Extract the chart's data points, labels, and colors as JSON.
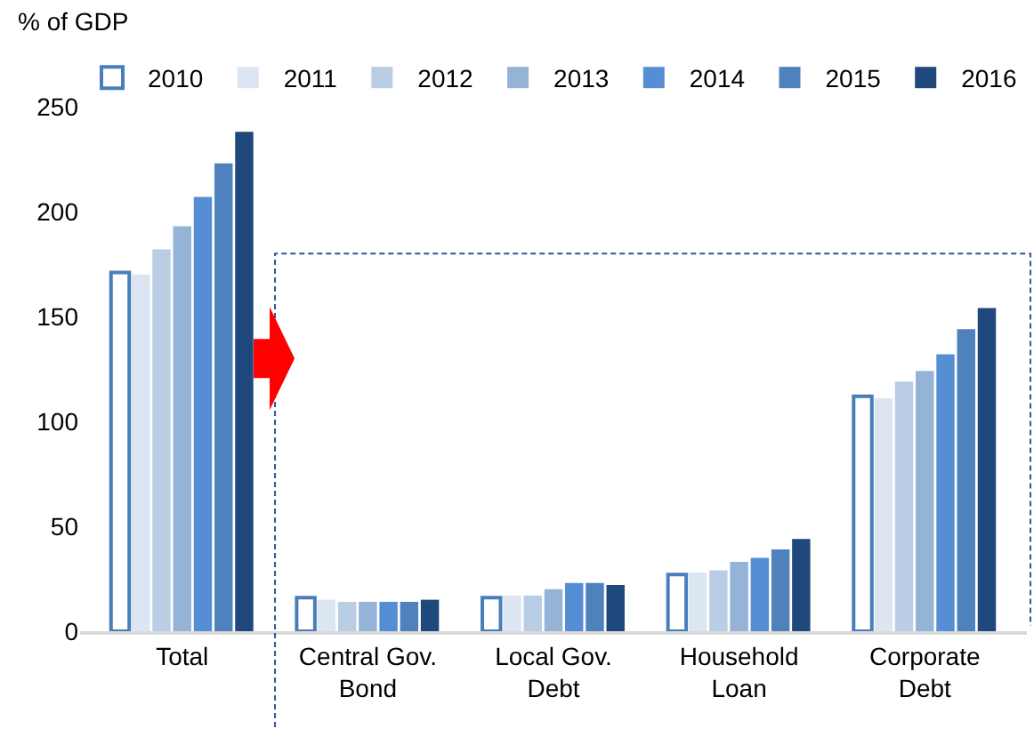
{
  "chart_data": {
    "type": "bar",
    "ylabel": "% of GDP",
    "categories": [
      "Total",
      "Central Gov.\nBond",
      "Local Gov.\nDebt",
      "Household\nLoan",
      "Corporate\nDebt"
    ],
    "series": [
      {
        "name": "2010",
        "color": "#4a7ebb",
        "values": [
          171,
          16,
          16,
          27,
          112
        ]
      },
      {
        "name": "2011",
        "color": "#dce6f2",
        "values": [
          170,
          15,
          17,
          28,
          111
        ]
      },
      {
        "name": "2012",
        "color": "#b9cde5",
        "values": [
          182,
          14,
          17,
          29,
          119
        ]
      },
      {
        "name": "2013",
        "color": "#95b3d7",
        "values": [
          193,
          14,
          20,
          33,
          124
        ]
      },
      {
        "name": "2014",
        "color": "#558ed5",
        "values": [
          207,
          14,
          23,
          35,
          132
        ]
      },
      {
        "name": "2015",
        "color": "#4f81bd",
        "values": [
          223,
          14,
          23,
          39,
          144
        ]
      },
      {
        "name": "2016",
        "color": "#1f497d",
        "values": [
          238,
          15,
          22,
          44,
          154
        ]
      }
    ],
    "ylim": [
      0,
      250
    ],
    "yticks": [
      0,
      50,
      100,
      150,
      200,
      250
    ],
    "grid": false,
    "legend": "top right"
  }
}
